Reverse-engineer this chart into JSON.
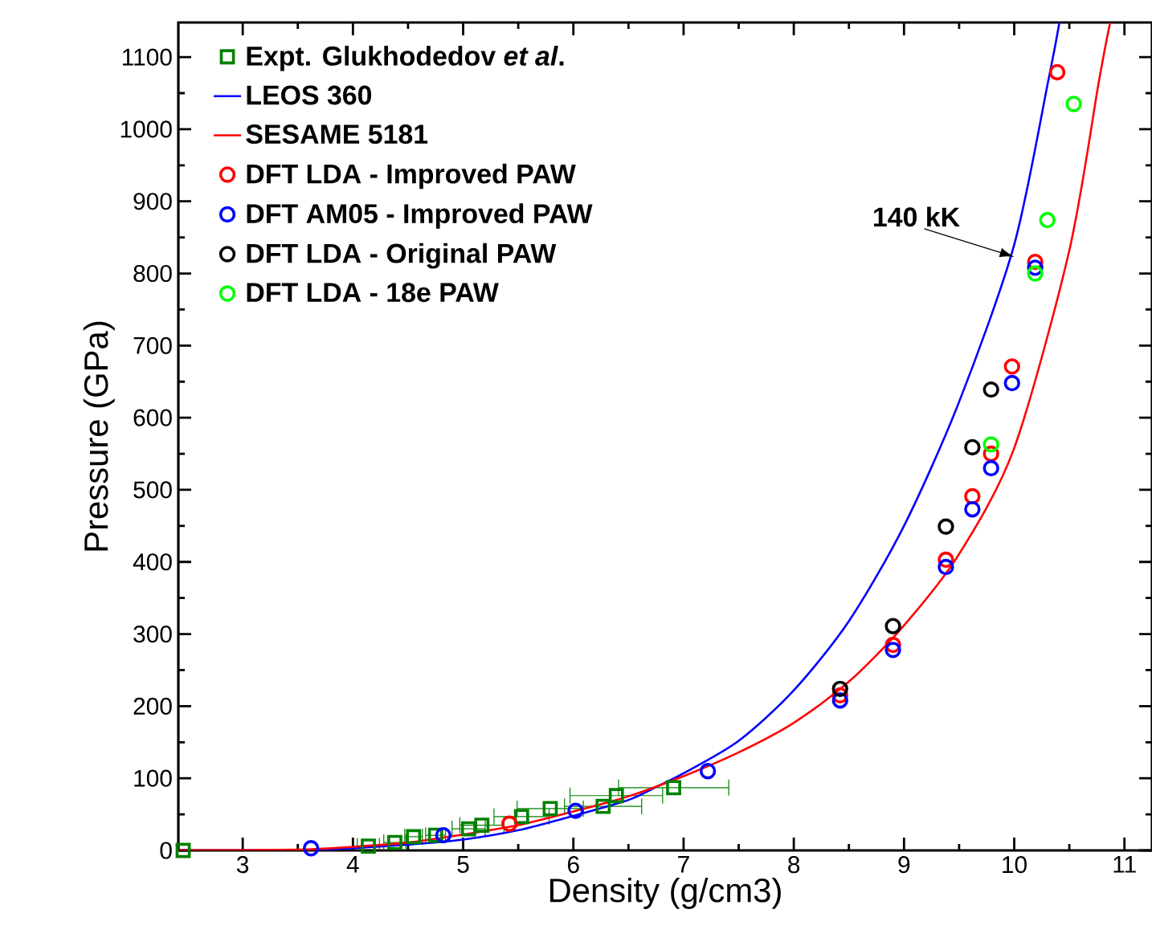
{
  "chart_data": {
    "type": "scatter",
    "xlabel": "Density (g/cm3)",
    "ylabel": "Pressure (GPa)",
    "xlim": [
      2.416,
      11.25
    ],
    "ylim": [
      0,
      1148
    ],
    "xticks": [
      3,
      4,
      5,
      6,
      7,
      8,
      9,
      10,
      11
    ],
    "yticks": [
      0,
      100,
      200,
      300,
      400,
      500,
      600,
      700,
      800,
      900,
      1000,
      1100
    ],
    "legend": "top left",
    "annotations": [
      {
        "text": "140 kK",
        "x": 10.0,
        "y": 823
      }
    ],
    "series": [
      {
        "name": "Expt. Glukhodedov *et al*.",
        "marker": "square",
        "color": "#008000",
        "x": [
          2.46,
          4.14,
          4.38,
          4.55,
          4.75,
          5.05,
          5.17,
          5.53,
          5.79,
          6.27,
          6.39,
          6.91
        ],
        "values": [
          0,
          6,
          11,
          19,
          21,
          30,
          35,
          47,
          58,
          61,
          76,
          87
        ],
        "xerrors": [
          null,
          0.1,
          0.1,
          0.08,
          0.09,
          0.15,
          0.2,
          0.25,
          0.3,
          0.35,
          0.42,
          0.5
        ]
      },
      {
        "name": "LEOS 360",
        "type": "line",
        "marker": "none",
        "color": "#0000ff",
        "x": [
          2.416,
          3.5,
          4,
          4.5,
          5,
          5.5,
          6,
          6.5,
          6.75,
          7,
          7.5,
          8,
          8.5,
          9,
          9.5,
          10,
          10.31,
          10.41
        ],
        "values": [
          0,
          0,
          3,
          8,
          15,
          28,
          48,
          70,
          88,
          107,
          152,
          222,
          318,
          450,
          622,
          840,
          1068,
          1148
        ]
      },
      {
        "name": "SESAME 5181",
        "type": "line",
        "marker": "none",
        "color": "#ff0000",
        "x": [
          2.416,
          3.5,
          4,
          4.5,
          5,
          5.5,
          6,
          6.5,
          7,
          7.5,
          8,
          8.5,
          9,
          9.5,
          10,
          10.5,
          10.77,
          10.87
        ],
        "values": [
          0,
          1,
          5,
          11,
          22,
          35,
          54,
          75,
          103,
          136,
          177,
          234,
          312,
          411,
          558,
          832,
          1068,
          1148
        ]
      },
      {
        "name": "DFT LDA - Improved PAW",
        "marker": "circle",
        "color": "#ff0000",
        "x": [
          5.42,
          8.42,
          8.9,
          9.38,
          9.62,
          9.79,
          9.98,
          10.19,
          10.39
        ],
        "values": [
          37,
          215,
          285,
          403,
          491,
          550,
          671,
          816,
          1079
        ]
      },
      {
        "name": "DFT AM05 - Improved PAW",
        "marker": "circle",
        "color": "#0000ff",
        "x": [
          3.62,
          4.82,
          6.02,
          7.22,
          8.42,
          8.9,
          9.38,
          9.62,
          9.79,
          9.98,
          10.19
        ],
        "values": [
          3,
          21,
          55,
          110,
          208,
          278,
          393,
          473,
          530,
          648,
          808
        ]
      },
      {
        "name": "DFT LDA - Original PAW",
        "marker": "circle",
        "color": "#000000",
        "x": [
          8.42,
          8.9,
          9.38,
          9.62,
          9.79
        ],
        "values": [
          224,
          311,
          449,
          559,
          639
        ]
      },
      {
        "name": "DFT LDA - 18e PAW",
        "marker": "circle",
        "color": "#00ff00",
        "x": [
          9.79,
          10.19,
          10.3,
          10.54
        ],
        "values": [
          563,
          800,
          874,
          1035
        ]
      }
    ]
  }
}
